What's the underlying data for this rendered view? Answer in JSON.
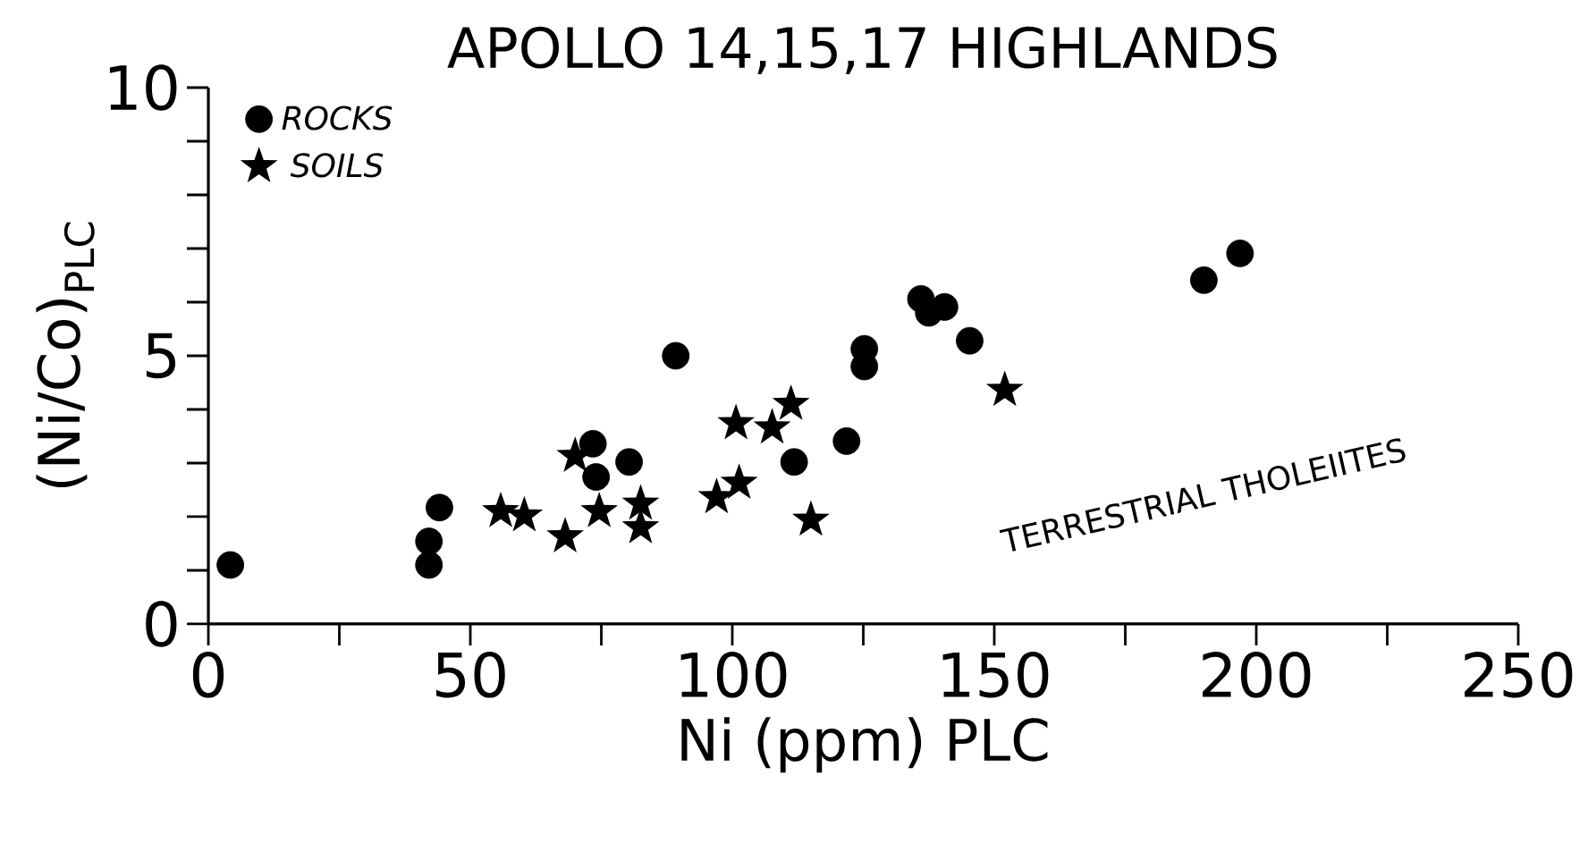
{
  "chart_data": {
    "type": "scatter",
    "title": "APOLLO 14,15,17 HIGHLANDS",
    "xlabel": "Ni (ppm) PLC",
    "ylabel": "(Ni/Co)$_{PLC}$",
    "xlim": [
      0,
      250
    ],
    "ylim": [
      0,
      10
    ],
    "xticks": [
      0,
      {
        "value": 25,
        "label": null
      },
      50,
      {
        "value": 75,
        "label": null
      },
      100,
      {
        "value": 125,
        "label": null
      },
      150,
      {
        "value": 175,
        "label": null
      },
      200,
      {
        "value": 225,
        "label": null
      },
      250
    ],
    "yticks": [
      0,
      {
        "value": 1,
        "label": null
      },
      {
        "value": 2,
        "label": null
      },
      {
        "value": 3,
        "label": null
      },
      {
        "value": 4,
        "label": null
      },
      5,
      {
        "value": 6,
        "label": null
      },
      {
        "value": 7,
        "label": null
      },
      {
        "value": 8,
        "label": null
      },
      {
        "value": 9,
        "label": null
      },
      10
    ],
    "legend": "top left",
    "grid": false,
    "series": [
      {
        "name": "ROCKS",
        "color": "#000000",
        "marker": "circle",
        "x": [
          4.2,
          42.1,
          42.1,
          44.1,
          73.4,
          74,
          80.3,
          89.2,
          111.8,
          121.8,
          125.2,
          125.2,
          136,
          137.5,
          140.5,
          145.3,
          190,
          196.9
        ],
        "values": [
          1.1,
          1.54,
          1.1,
          2.17,
          3.36,
          2.74,
          3.02,
          5.0,
          3.02,
          3.41,
          5.13,
          4.8,
          6.06,
          5.8,
          5.91,
          5.28,
          6.41,
          6.91
        ]
      },
      {
        "name": "SOILS",
        "color": "#000000",
        "marker": "star",
        "x": [
          55.8,
          60.3,
          68.1,
          70,
          74.6,
          82.5,
          82.5,
          97,
          100.7,
          101.3,
          107.6,
          111.2,
          115,
          152
        ],
        "values": [
          2.1,
          2.02,
          1.63,
          3.13,
          2.1,
          2.24,
          1.8,
          2.36,
          3.74,
          2.63,
          3.66,
          4.1,
          1.94,
          4.36
        ]
      }
    ],
    "annotations": [
      "TERRESTRIAL THOLEIITES"
    ]
  }
}
